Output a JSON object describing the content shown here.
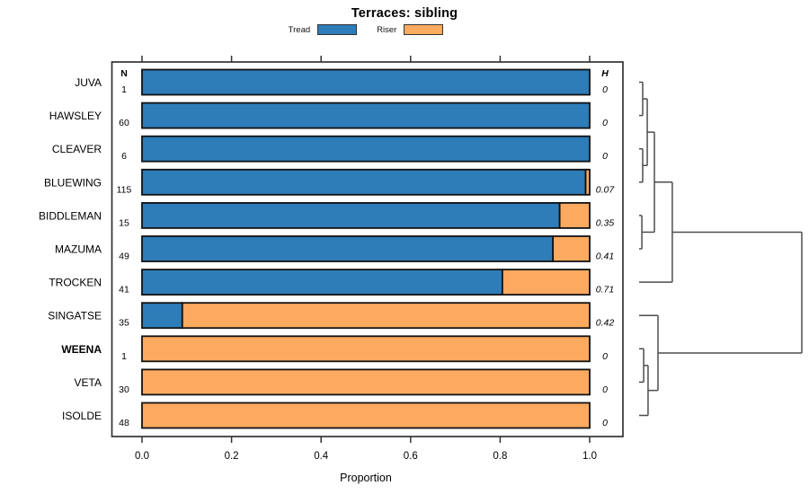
{
  "title": "Terraces: sibling",
  "legend": {
    "items": [
      {
        "label": "Tread",
        "color": "#2E7CB8"
      },
      {
        "label": "Riser",
        "color": "#FCAA5F"
      }
    ]
  },
  "col_headers": {
    "n": "N",
    "h": "H"
  },
  "xlabel": "Proportion",
  "chart_data": {
    "type": "bar",
    "orientation": "horizontal",
    "stacked": true,
    "title": "Terraces: sibling",
    "xlabel": "Proportion",
    "xlim": [
      0,
      1
    ],
    "x_tick_labels": [
      "0.0",
      "0.2",
      "0.4",
      "0.6",
      "0.8",
      "1.0"
    ],
    "x_tick_values": [
      0.0,
      0.2,
      0.4,
      0.6,
      0.8,
      1.0
    ],
    "grid": false,
    "legend_position": "top",
    "categories": [
      "JUVA",
      "HAWSLEY",
      "CLEAVER",
      "BLUEWING",
      "BIDDLEMAN",
      "MAZUMA",
      "TROCKEN",
      "SINGATSE",
      "WEENA",
      "VETA",
      "ISOLDE"
    ],
    "bold_categories": [
      "WEENA"
    ],
    "N": [
      "1",
      "60",
      "6",
      "115",
      "15",
      "49",
      "41",
      "35",
      "1",
      "30",
      "48"
    ],
    "H": [
      "0",
      "0",
      "0",
      "0.07",
      "0.35",
      "0.41",
      "0.71",
      "0.42",
      "0",
      "0",
      "0"
    ],
    "series": [
      {
        "name": "Tread",
        "color": "#2E7CB8",
        "values": [
          1,
          1,
          1,
          0.991,
          0.933,
          0.918,
          0.805,
          0.09,
          0,
          0,
          0
        ]
      },
      {
        "name": "Riser",
        "color": "#FCAA5F",
        "values": [
          0,
          0,
          0,
          0.009,
          0.067,
          0.082,
          0.195,
          0.91,
          1,
          1,
          1
        ]
      }
    ],
    "dendrogram": {
      "leaves": [
        "JUVA",
        "HAWSLEY",
        "CLEAVER",
        "BLUEWING",
        "BIDDLEMAN",
        "MAZUMA",
        "TROCKEN",
        "SINGATSE",
        "WEENA",
        "VETA",
        "ISOLDE"
      ],
      "joins": [
        {
          "a": "leaf:0",
          "b": "leaf:1",
          "height": 0.022
        },
        {
          "a": "leaf:2",
          "b": "leaf:3",
          "height": 0.022
        },
        {
          "a": "join:0",
          "b": "join:1",
          "height": 0.05
        },
        {
          "a": "leaf:4",
          "b": "leaf:5",
          "height": 0.017
        },
        {
          "a": "join:2",
          "b": "join:3",
          "height": 0.094
        },
        {
          "a": "join:4",
          "b": "leaf:6",
          "height": 0.204
        },
        {
          "a": "leaf:8",
          "b": "leaf:9",
          "height": 0.028
        },
        {
          "a": "join:6",
          "b": "leaf:10",
          "height": 0.055
        },
        {
          "a": "leaf:7",
          "b": "join:7",
          "height": 0.116
        },
        {
          "a": "join:5",
          "b": "join:8",
          "height": 1.0
        }
      ]
    }
  },
  "colors": {
    "tread": "#2E7CB8",
    "riser": "#FCAA5F",
    "bar_border": "#111111",
    "box_border": "#333333",
    "dendrogram_line": "#4d4d4d"
  }
}
